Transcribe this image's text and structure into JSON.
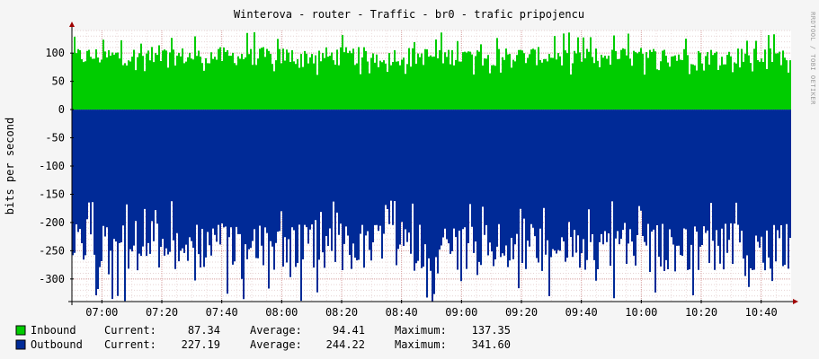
{
  "chart_data": {
    "type": "area",
    "title": "Winterova - router - Traffic - br0 - trafic pripojencu",
    "ylabel": "bits per second",
    "watermark": "RRDTOOL / TOBI OETIKER",
    "ylim": [
      -340,
      140
    ],
    "yticks": [
      100,
      50,
      0,
      -50,
      -100,
      -150,
      -200,
      -250,
      -300
    ],
    "ytick_labels": [
      "100",
      "50",
      "0",
      "-50",
      "-100",
      "-150",
      "-200",
      "-250",
      "-300"
    ],
    "xlim": [
      "06:50",
      "10:50"
    ],
    "xticks": [
      "07:00",
      "07:20",
      "07:40",
      "08:00",
      "08:20",
      "08:40",
      "09:00",
      "09:20",
      "09:40",
      "10:00",
      "10:20",
      "10:40"
    ],
    "grid": true,
    "legend_position": "bottom-left",
    "series": [
      {
        "name": "Inbound",
        "color": "#00cc00",
        "sign": 1,
        "stats": {
          "current_label": "Current:",
          "current": "87.34",
          "average_label": "Average:",
          "average": "94.41",
          "maximum_label": "Maximum:",
          "maximum": "137.35"
        }
      },
      {
        "name": "Outbound",
        "color": "#002a97",
        "sign": -1,
        "stats": {
          "current_label": "Current:",
          "current": "227.19",
          "average_label": "Average:",
          "average": "244.22",
          "maximum_label": "Maximum:",
          "maximum": "341.60"
        }
      }
    ]
  }
}
